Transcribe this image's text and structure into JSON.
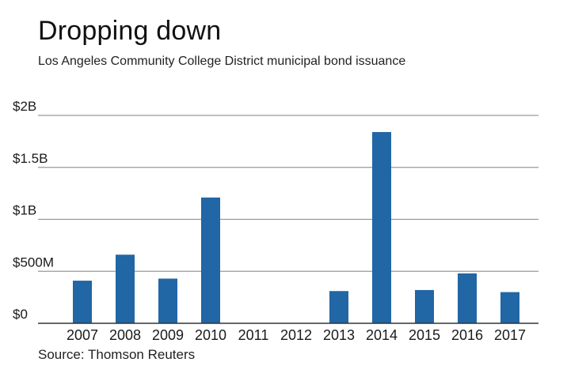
{
  "header": {
    "title": "Dropping down",
    "subtitle": "Los Angeles Community College District municipal bond issuance"
  },
  "footer": {
    "source": "Source: Thomson Reuters"
  },
  "chart_data": {
    "type": "bar",
    "title": "Dropping down",
    "subtitle": "Los Angeles Community College District municipal bond issuance",
    "xlabel": "",
    "ylabel": "",
    "categories": [
      "2007",
      "2008",
      "2009",
      "2010",
      "2011",
      "2012",
      "2013",
      "2014",
      "2015",
      "2016",
      "2017"
    ],
    "values": [
      0.41,
      0.66,
      0.43,
      1.21,
      0,
      0,
      0.31,
      1.84,
      0.32,
      0.48,
      0.3
    ],
    "value_unit": "billion USD",
    "ylim": [
      0,
      2
    ],
    "yticks": [
      {
        "value": 0,
        "label": "$0"
      },
      {
        "value": 0.5,
        "label": "$500M"
      },
      {
        "value": 1,
        "label": "$1B"
      },
      {
        "value": 1.5,
        "label": "$1.5B"
      },
      {
        "value": 2,
        "label": "$2B"
      }
    ],
    "grid": true,
    "legend": "none",
    "bar_color": "#2166a5",
    "grid_color": "#999999",
    "axis_color": "#333333",
    "source": "Source: Thomson Reuters"
  }
}
